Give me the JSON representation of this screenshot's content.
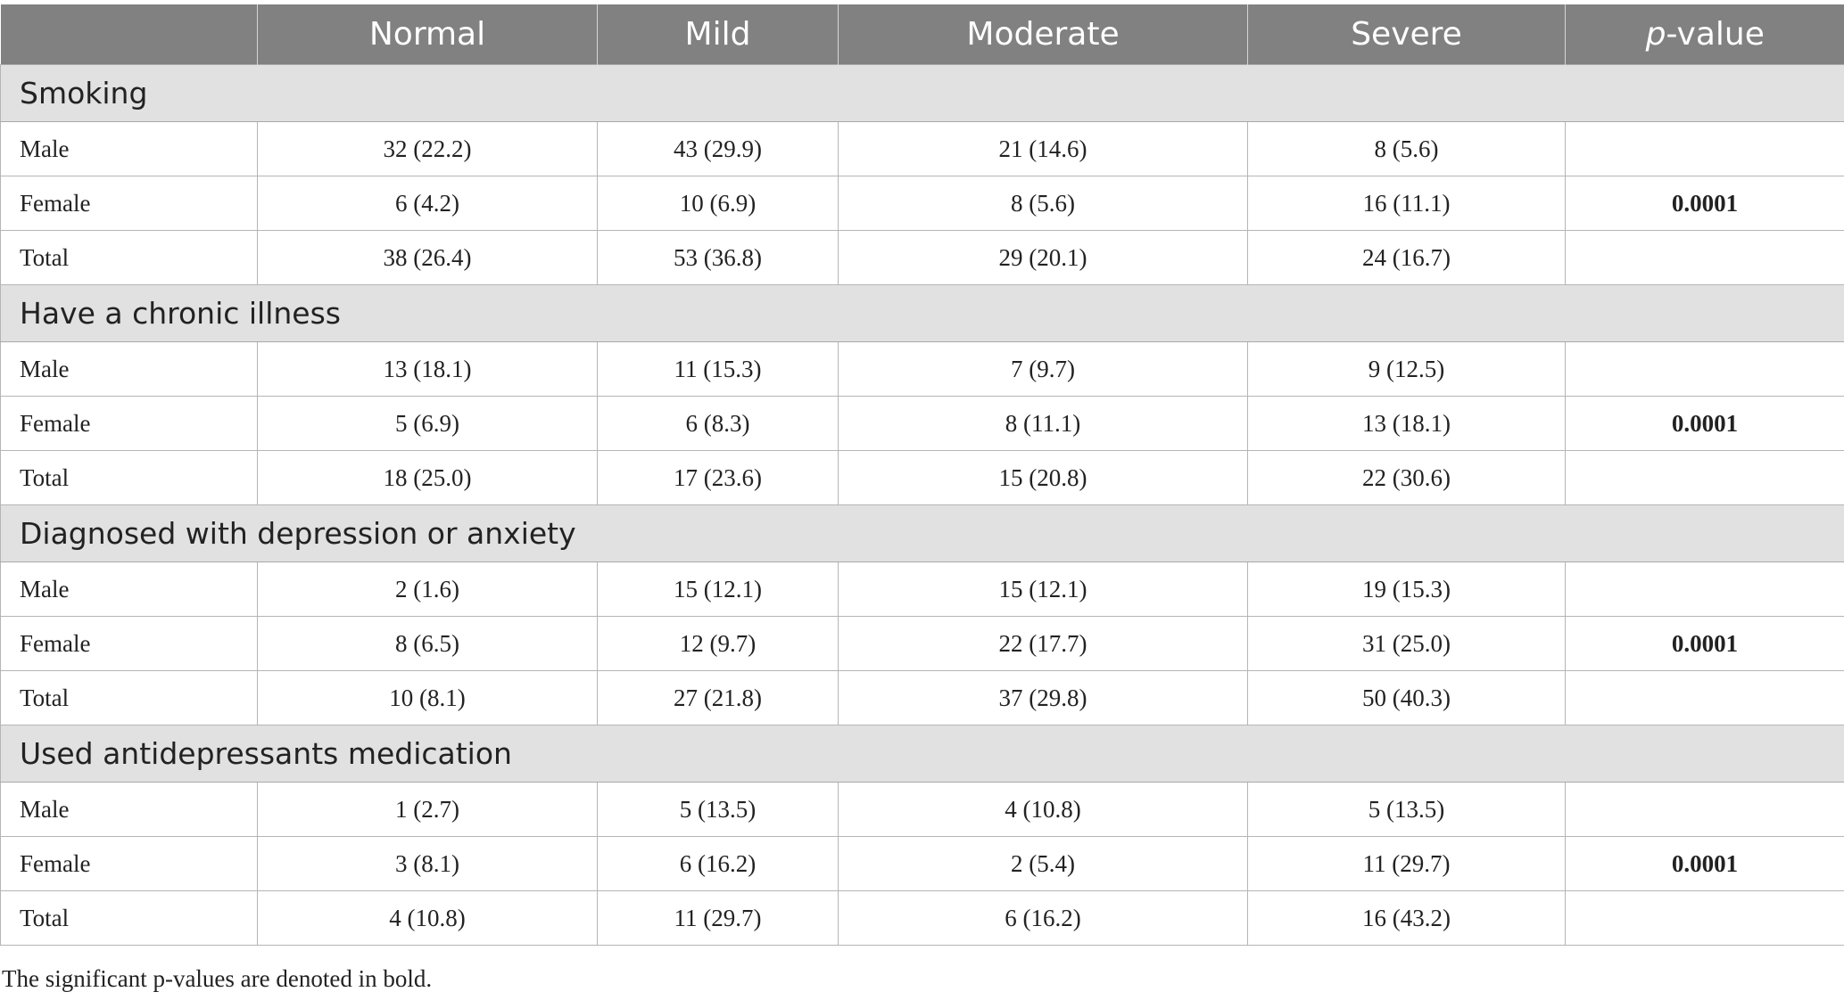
{
  "table": {
    "headers": [
      "",
      "Normal",
      "Mild",
      "Moderate",
      "Severe"
    ],
    "pvalue_header_prefix": "p",
    "pvalue_header_suffix": "-value",
    "sections": [
      {
        "title": "Smoking",
        "rows": [
          {
            "label": "Male",
            "cells": [
              "32 (22.2)",
              "43 (29.9)",
              "21 (14.6)",
              "8 (5.6)"
            ],
            "pvalue": ""
          },
          {
            "label": "Female",
            "cells": [
              "6 (4.2)",
              "10 (6.9)",
              "8 (5.6)",
              "16 (11.1)"
            ],
            "pvalue": "0.0001"
          },
          {
            "label": "Total",
            "cells": [
              "38 (26.4)",
              "53 (36.8)",
              "29 (20.1)",
              "24 (16.7)"
            ],
            "pvalue": ""
          }
        ]
      },
      {
        "title": "Have a chronic illness",
        "rows": [
          {
            "label": "Male",
            "cells": [
              "13 (18.1)",
              "11 (15.3)",
              "7 (9.7)",
              "9 (12.5)"
            ],
            "pvalue": ""
          },
          {
            "label": "Female",
            "cells": [
              "5 (6.9)",
              "6 (8.3)",
              "8 (11.1)",
              "13 (18.1)"
            ],
            "pvalue": "0.0001"
          },
          {
            "label": "Total",
            "cells": [
              "18 (25.0)",
              "17 (23.6)",
              "15 (20.8)",
              "22 (30.6)"
            ],
            "pvalue": ""
          }
        ]
      },
      {
        "title": "Diagnosed with depression or anxiety",
        "rows": [
          {
            "label": "Male",
            "cells": [
              "2 (1.6)",
              "15 (12.1)",
              "15 (12.1)",
              "19 (15.3)"
            ],
            "pvalue": ""
          },
          {
            "label": "Female",
            "cells": [
              "8 (6.5)",
              "12 (9.7)",
              "22 (17.7)",
              "31 (25.0)"
            ],
            "pvalue": "0.0001"
          },
          {
            "label": "Total",
            "cells": [
              "10 (8.1)",
              "27 (21.8)",
              "37 (29.8)",
              "50 (40.3)"
            ],
            "pvalue": ""
          }
        ]
      },
      {
        "title": "Used antidepressants medication",
        "rows": [
          {
            "label": "Male",
            "cells": [
              "1 (2.7)",
              "5 (13.5)",
              "4 (10.8)",
              "5 (13.5)"
            ],
            "pvalue": ""
          },
          {
            "label": "Female",
            "cells": [
              "3 (8.1)",
              "6 (16.2)",
              "2 (5.4)",
              "11 (29.7)"
            ],
            "pvalue": "0.0001"
          },
          {
            "label": "Total",
            "cells": [
              "4 (10.8)",
              "11 (29.7)",
              "6 (16.2)",
              "16 (43.2)"
            ],
            "pvalue": ""
          }
        ]
      }
    ]
  },
  "footnote": "The significant p-values are denoted in bold."
}
